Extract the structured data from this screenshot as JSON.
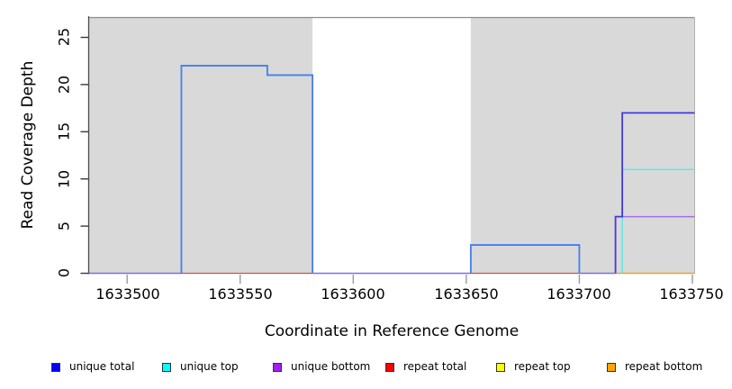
{
  "chart_data": {
    "type": "line",
    "title": "",
    "xlabel": "Coordinate in Reference Genome",
    "ylabel": "Read Coverage Depth",
    "xlim": [
      1633483,
      1633751
    ],
    "ylim": [
      0,
      27.1
    ],
    "grid": false,
    "legend_position": "bottom",
    "x_ticks": [
      1633500,
      1633550,
      1633600,
      1633650,
      1633700,
      1633750
    ],
    "x_tick_labels": [
      "1633500",
      "1633550",
      "1633600",
      "1633650",
      "1633700",
      "1633750"
    ],
    "y_ticks": [
      0,
      5,
      10,
      15,
      20,
      25
    ],
    "y_tick_labels": [
      "0",
      "5",
      "10",
      "15",
      "20",
      "25"
    ],
    "shaded_regions": [
      {
        "x1": 1633483,
        "x2": 1633582,
        "fill": "#D9D9D9"
      },
      {
        "x1": 1633652,
        "x2": 1633751,
        "fill": "#D9D9D9"
      }
    ],
    "series": [
      {
        "name": "unique total",
        "color": "#0000FF",
        "points": [
          [
            1633483,
            0
          ],
          [
            1633524,
            0
          ],
          [
            1633524,
            22
          ],
          [
            1633562,
            22
          ],
          [
            1633562,
            21
          ],
          [
            1633582,
            21
          ],
          [
            1633582,
            0
          ],
          [
            1633652,
            0
          ],
          [
            1633652,
            3
          ],
          [
            1633700,
            3
          ],
          [
            1633700,
            0
          ],
          [
            1633716,
            0
          ],
          [
            1633716,
            6
          ],
          [
            1633719,
            6
          ],
          [
            1633719,
            17
          ],
          [
            1633751,
            17
          ]
        ]
      },
      {
        "name": "unique top",
        "color": "#00FFFF",
        "points": [
          [
            1633483,
            0
          ],
          [
            1633719,
            0
          ],
          [
            1633719,
            11
          ],
          [
            1633751,
            11
          ]
        ]
      },
      {
        "name": "unique bottom",
        "color": "#A020F0",
        "points": [
          [
            1633483,
            0
          ],
          [
            1633716,
            0
          ],
          [
            1633716,
            6
          ],
          [
            1633751,
            6
          ]
        ]
      },
      {
        "name": "repeat total",
        "color": "#FF0000",
        "points": [
          [
            1633483,
            0
          ],
          [
            1633751,
            0
          ]
        ]
      },
      {
        "name": "repeat top",
        "color": "#FFFF00",
        "points": [
          [
            1633483,
            0
          ],
          [
            1633751,
            0
          ]
        ]
      },
      {
        "name": "repeat bottom",
        "color": "#FFA500",
        "points": [
          [
            1633483,
            0
          ],
          [
            1633751,
            0
          ]
        ]
      }
    ],
    "legend": [
      {
        "label": "unique total",
        "color": "#0000FF"
      },
      {
        "label": "unique top",
        "color": "#00FFFF"
      },
      {
        "label": "unique bottom",
        "color": "#A020F0"
      },
      {
        "label": "repeat total",
        "color": "#FF0000"
      },
      {
        "label": "repeat top",
        "color": "#FFFF00"
      },
      {
        "label": "repeat bottom",
        "color": "#FFA500"
      }
    ],
    "render": {
      "frame": {
        "top_color": "#8C8C8C",
        "left_color": "#4A4A4A",
        "right_color": "#B0B0B0"
      },
      "x_tick_color": "#9A9A9A",
      "y_tick_color": "#3A3A3A",
      "lines": [
        {
          "name": "baseline-violet-left",
          "color": "#7B6CEE",
          "width": 1.5,
          "points": [
            [
              1633483,
              0
            ],
            [
              1633524,
              0
            ]
          ]
        },
        {
          "name": "baseline-red-1",
          "color": "#E04848",
          "width": 1.3,
          "points": [
            [
              1633524,
              0
            ],
            [
              1633582,
              0
            ]
          ]
        },
        {
          "name": "baseline-violet-mid",
          "color": "#7B6CEE",
          "width": 1.5,
          "points": [
            [
              1633582,
              0
            ],
            [
              1633652,
              0
            ]
          ]
        },
        {
          "name": "baseline-red-2",
          "color": "#E04848",
          "width": 1.3,
          "points": [
            [
              1633652,
              0
            ],
            [
              1633700,
              0
            ]
          ]
        },
        {
          "name": "baseline-violet-right",
          "color": "#7B6CEE",
          "width": 1.5,
          "points": [
            [
              1633700,
              0
            ],
            [
              1633716,
              0
            ]
          ]
        },
        {
          "name": "baseline-orange",
          "color": "#FB9C28",
          "width": 1.6,
          "points": [
            [
              1633716,
              0
            ],
            [
              1633751,
              0
            ]
          ]
        },
        {
          "name": "unique-top-step",
          "color": "#5FE9E2",
          "width": 1.5,
          "points": [
            [
              1633719,
              0
            ],
            [
              1633719,
              11
            ],
            [
              1633751,
              11
            ]
          ]
        },
        {
          "name": "unique-bottom-step",
          "color": "#A06FE3",
          "width": 1.5,
          "points": [
            [
              1633716,
              6
            ],
            [
              1633751,
              6
            ]
          ]
        },
        {
          "name": "unique-total-step-22",
          "color": "#4080F0",
          "width": 1.8,
          "points": [
            [
              1633524,
              0
            ],
            [
              1633524,
              22
            ],
            [
              1633562,
              22
            ],
            [
              1633562,
              21
            ],
            [
              1633582,
              21
            ],
            [
              1633582,
              0
            ]
          ]
        },
        {
          "name": "unique-total-step-3",
          "color": "#4080F0",
          "width": 1.8,
          "points": [
            [
              1633652,
              0
            ],
            [
              1633652,
              3
            ],
            [
              1633700,
              3
            ],
            [
              1633700,
              0
            ]
          ]
        },
        {
          "name": "unique-total-step-17",
          "color": "#4438DF",
          "width": 1.8,
          "points": [
            [
              1633716,
              0
            ],
            [
              1633716,
              6
            ],
            [
              1633719,
              6
            ],
            [
              1633719,
              17
            ],
            [
              1633751,
              17
            ]
          ]
        }
      ]
    }
  }
}
